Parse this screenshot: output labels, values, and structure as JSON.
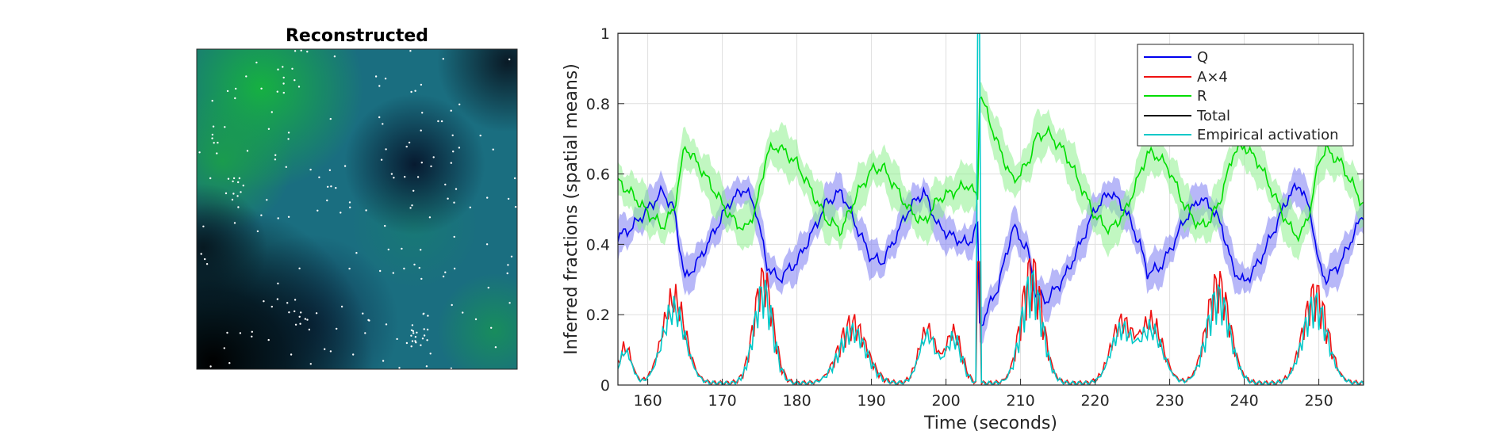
{
  "chart_data": [
    {
      "type": "heatmap",
      "title": "Reconstructed",
      "colors": {
        "dark": "#08080a",
        "teal": "#1a6e80",
        "green": "#16b43e",
        "navy": "#0c2c4a",
        "dots": "#ffffff"
      }
    },
    {
      "type": "line",
      "title": "",
      "xlabel": "Time (seconds)",
      "ylabel": "Inferred fractions (spatial means)",
      "xlim": [
        156,
        256
      ],
      "ylim": [
        0,
        1
      ],
      "xticks": [
        "160",
        "170",
        "180",
        "190",
        "200",
        "210",
        "220",
        "230",
        "240",
        "250"
      ],
      "yticks": [
        "0",
        "0.2",
        "0.4",
        "0.6",
        "0.8",
        "1"
      ],
      "grid": true,
      "legend_position": "top-right",
      "event_time": 204.3,
      "series": [
        {
          "name": "Q",
          "color": "#0000ee",
          "band_color": "#7b7bf2",
          "x": [
            156,
            158,
            160,
            162,
            163.5,
            165,
            167,
            169,
            171,
            173,
            174.5,
            176,
            177.5,
            180,
            182,
            184,
            186,
            188,
            190,
            191.5,
            193,
            195,
            197,
            199,
            201,
            203,
            204.3,
            204.4,
            207,
            209,
            211,
            212,
            213.5,
            216,
            218,
            220,
            222,
            224,
            226,
            227,
            228.5,
            230,
            232,
            234,
            235.5,
            237,
            238.5,
            240,
            242,
            244,
            246,
            247.5,
            249,
            250,
            251,
            253,
            256
          ],
          "y": [
            0.42,
            0.45,
            0.5,
            0.55,
            0.5,
            0.3,
            0.36,
            0.44,
            0.52,
            0.56,
            0.5,
            0.34,
            0.3,
            0.35,
            0.43,
            0.52,
            0.55,
            0.45,
            0.36,
            0.35,
            0.41,
            0.5,
            0.55,
            0.45,
            0.42,
            0.4,
            0.46,
            0.16,
            0.28,
            0.45,
            0.38,
            0.26,
            0.24,
            0.31,
            0.4,
            0.5,
            0.55,
            0.5,
            0.4,
            0.32,
            0.33,
            0.38,
            0.47,
            0.53,
            0.51,
            0.45,
            0.33,
            0.29,
            0.35,
            0.44,
            0.54,
            0.57,
            0.48,
            0.34,
            0.3,
            0.35,
            0.49
          ],
          "band_halfwidth": 0.045
        },
        {
          "name": "A×4",
          "color": "#ee1111",
          "band_color": "",
          "x": [],
          "y": []
        },
        {
          "name": "R",
          "color": "#00dd00",
          "band_color": "#8ef08e",
          "x": [
            156,
            158,
            160,
            162,
            163.5,
            165,
            167,
            169,
            171,
            173,
            174.5,
            176,
            177.5,
            180,
            182,
            184,
            186,
            188,
            190,
            191.5,
            193,
            195,
            197,
            199,
            201,
            203,
            204.3,
            204.4,
            207,
            209,
            211,
            212,
            213.5,
            216,
            218,
            220,
            222,
            224,
            226,
            227,
            228.5,
            230,
            232,
            234,
            235.5,
            237,
            238.5,
            240,
            242,
            244,
            246,
            247.5,
            249,
            250,
            251,
            253,
            256
          ],
          "y": [
            0.58,
            0.54,
            0.49,
            0.45,
            0.5,
            0.68,
            0.62,
            0.55,
            0.48,
            0.44,
            0.5,
            0.66,
            0.68,
            0.63,
            0.55,
            0.47,
            0.44,
            0.54,
            0.61,
            0.62,
            0.57,
            0.5,
            0.46,
            0.53,
            0.55,
            0.57,
            0.53,
            0.84,
            0.68,
            0.58,
            0.63,
            0.7,
            0.72,
            0.66,
            0.57,
            0.48,
            0.44,
            0.49,
            0.6,
            0.66,
            0.65,
            0.61,
            0.51,
            0.45,
            0.47,
            0.54,
            0.66,
            0.68,
            0.63,
            0.54,
            0.45,
            0.42,
            0.51,
            0.64,
            0.67,
            0.63,
            0.51
          ],
          "band_halfwidth": 0.055
        },
        {
          "name": "Total",
          "color": "#000000",
          "band_color": "",
          "x": [
            156,
            256
          ],
          "y": [
            1,
            1
          ]
        },
        {
          "name": "Empirical activation",
          "color": "#00c8c8",
          "band_color": "",
          "x": [],
          "y": []
        }
      ],
      "activation_bursts": {
        "centers": [
          157,
          163.5,
          175.5,
          187.5,
          197.5,
          201,
          211.5,
          223.5,
          227.5,
          236.5,
          249.5
        ],
        "heights": [
          0.12,
          0.28,
          0.35,
          0.2,
          0.18,
          0.17,
          0.38,
          0.2,
          0.2,
          0.33,
          0.3
        ],
        "widths": [
          1.2,
          2.2,
          1.8,
          2.6,
          1.6,
          1.5,
          2.0,
          2.0,
          2.2,
          2.2,
          2.3
        ]
      }
    }
  ]
}
